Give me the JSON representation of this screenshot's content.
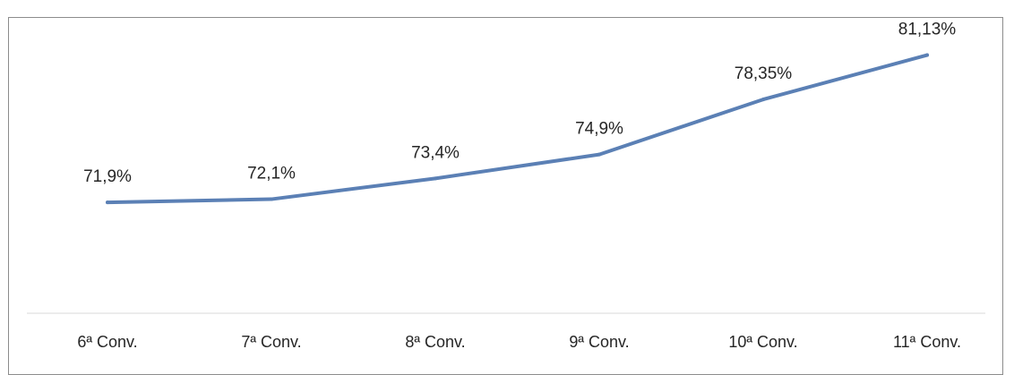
{
  "chart_data": {
    "type": "line",
    "title": "",
    "xlabel": "",
    "ylabel": "",
    "categories": [
      "6ª Conv.",
      "7ª Conv.",
      "8ª Conv.",
      "9ª Conv.",
      "10ª Conv.",
      "11ª Conv."
    ],
    "series": [
      {
        "values": [
          71.9,
          72.1,
          73.4,
          74.9,
          78.35,
          81.13
        ],
        "labels": [
          "71,9%",
          "72,1%",
          "73,4%",
          "74,9%",
          "78,35%",
          "81,13%"
        ],
        "color": "#5b80b5"
      }
    ],
    "grid": false,
    "legend": "none"
  }
}
